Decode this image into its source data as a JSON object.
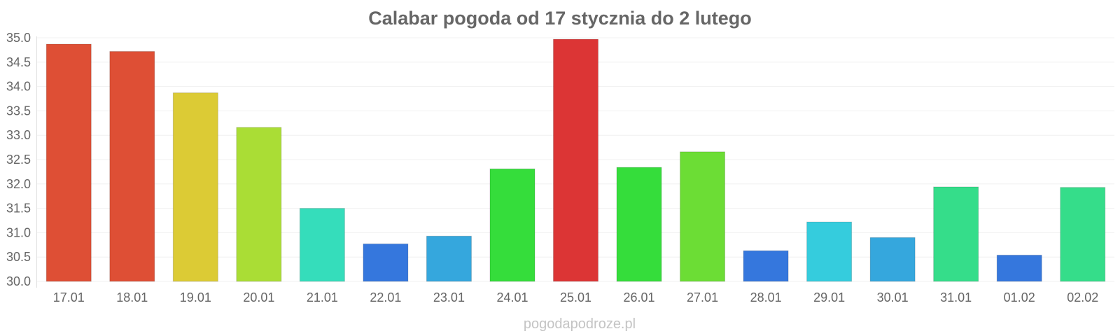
{
  "chart_data": {
    "type": "bar",
    "title": "Calabar pogoda od 17 stycznia do 2 lutego",
    "xlabel": "",
    "ylabel": "",
    "ylim": [
      30.0,
      35.0
    ],
    "yticks": [
      "30.0",
      "30.5",
      "31.0",
      "31.5",
      "32.0",
      "32.5",
      "33.0",
      "33.5",
      "34.0",
      "34.5",
      "35.0"
    ],
    "grid": true,
    "legend": "none",
    "categories": [
      "17.01",
      "18.01",
      "19.01",
      "20.01",
      "21.01",
      "22.01",
      "23.01",
      "24.01",
      "25.01",
      "26.01",
      "27.01",
      "28.01",
      "29.01",
      "30.01",
      "31.01",
      "01.02",
      "02.02"
    ],
    "values": [
      34.87,
      34.72,
      33.87,
      33.16,
      31.5,
      30.77,
      30.93,
      32.31,
      34.97,
      32.34,
      32.66,
      30.63,
      31.22,
      30.9,
      31.94,
      30.54,
      31.93
    ],
    "colors": [
      "#de4f35",
      "#de4f35",
      "#dccb35",
      "#aadd35",
      "#35ddbb",
      "#3577dd",
      "#35a7dd",
      "#35dd3b",
      "#dc3535",
      "#35dd3b",
      "#6cdd35",
      "#3577dd",
      "#35ccdd",
      "#35a7dd",
      "#35dd8a",
      "#3577dd",
      "#35dd8a"
    ]
  },
  "watermark": "pogodapodroze.pl"
}
